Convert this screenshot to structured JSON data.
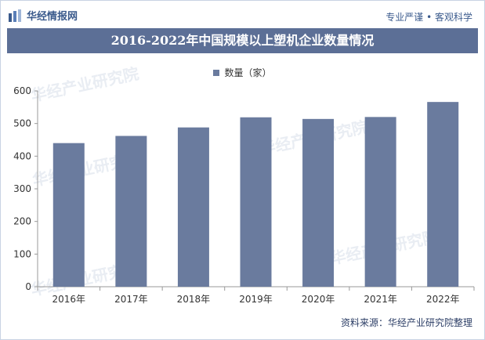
{
  "header": {
    "brand": "华经情报网",
    "slogan": "专业严谨 • 客观科学"
  },
  "watermark": "华经产业研究院",
  "source": "资料来源：华经产业研究院整理",
  "chart_data": {
    "type": "bar",
    "title": "2016-2022年中国规模以上塑机企业数量情况",
    "categories": [
      "2016年",
      "2017年",
      "2018年",
      "2019年",
      "2020年",
      "2021年",
      "2022年"
    ],
    "series": [
      {
        "name": "数量（家）",
        "values": [
          440,
          462,
          488,
          519,
          514,
          520,
          566
        ],
        "color": "#6a7b9e"
      }
    ],
    "ylim": [
      0,
      600
    ],
    "yticks": [
      0,
      100,
      200,
      300,
      400,
      500,
      600
    ],
    "legend_position": "top-center",
    "grid": false
  }
}
